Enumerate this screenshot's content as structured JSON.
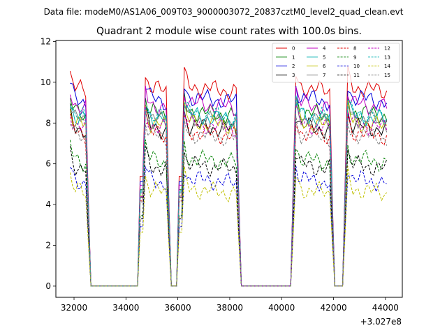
{
  "chart_data": {
    "type": "line",
    "suptitle": "Data file: modeM0/AS1A06_009T03_9000003072_20837cztM0_level2_quad_clean.evt",
    "title": "Quadrant 2 module wise count rates with 100.0s bins.",
    "xlabel": "",
    "ylabel": "",
    "x_offset_label": "+3.027e8",
    "xlim": [
      31300,
      44650
    ],
    "ylim": [
      -0.55,
      12.05
    ],
    "xticks": [
      32000,
      34000,
      36000,
      38000,
      40000,
      42000,
      44000
    ],
    "xtick_labels": [
      "32000",
      "34000",
      "36000",
      "38000",
      "40000",
      "42000",
      "44000"
    ],
    "yticks": [
      0,
      2,
      4,
      6,
      8,
      10,
      12
    ],
    "ytick_labels": [
      "0",
      "2",
      "4",
      "6",
      "8",
      "10",
      "12"
    ],
    "bin_width_s": 100,
    "legend": {
      "location": "upper right",
      "ncol": 4
    },
    "segments": [
      {
        "start": 31850,
        "end": 32450
      },
      {
        "start": 34750,
        "end": 35550
      },
      {
        "start": 36250,
        "end": 38250
      },
      {
        "start": 40550,
        "end": 41850
      },
      {
        "start": 42550,
        "end": 44050
      }
    ],
    "zero_runs": [
      {
        "start": 32650,
        "end": 34450
      },
      {
        "start": 35750,
        "end": 35950
      },
      {
        "start": 38450,
        "end": 40350
      },
      {
        "start": 42050,
        "end": 42350
      }
    ],
    "series": [
      {
        "name": "0",
        "color": "#e00000",
        "dash": "solid",
        "level": 9.8
      },
      {
        "name": "1",
        "color": "#008000",
        "dash": "solid",
        "level": 8.6
      },
      {
        "name": "2",
        "color": "#0000dd",
        "dash": "solid",
        "level": 9.3
      },
      {
        "name": "3",
        "color": "#000000",
        "dash": "solid",
        "level": 7.9
      },
      {
        "name": "4",
        "color": "#c000c0",
        "dash": "solid",
        "level": 9.0
      },
      {
        "name": "5",
        "color": "#00b0b0",
        "dash": "solid",
        "level": 8.4
      },
      {
        "name": "6",
        "color": "#c0c000",
        "dash": "solid",
        "level": 8.1
      },
      {
        "name": "7",
        "color": "#808080",
        "dash": "solid",
        "level": 8.3
      },
      {
        "name": "8",
        "color": "#e00000",
        "dash": "dashed",
        "level": 7.6
      },
      {
        "name": "9",
        "color": "#008000",
        "dash": "dashed",
        "level": 6.3
      },
      {
        "name": "10",
        "color": "#0000dd",
        "dash": "dashed",
        "level": 5.3
      },
      {
        "name": "11",
        "color": "#000000",
        "dash": "dashed",
        "level": 6.0
      },
      {
        "name": "12",
        "color": "#c000c0",
        "dash": "dashed",
        "level": 8.0
      },
      {
        "name": "13",
        "color": "#00b0b0",
        "dash": "dashed",
        "level": 8.5
      },
      {
        "name": "14",
        "color": "#c0c000",
        "dash": "dashed",
        "level": 4.8
      },
      {
        "name": "15",
        "color": "#808080",
        "dash": "dashed",
        "level": 7.5
      }
    ]
  }
}
